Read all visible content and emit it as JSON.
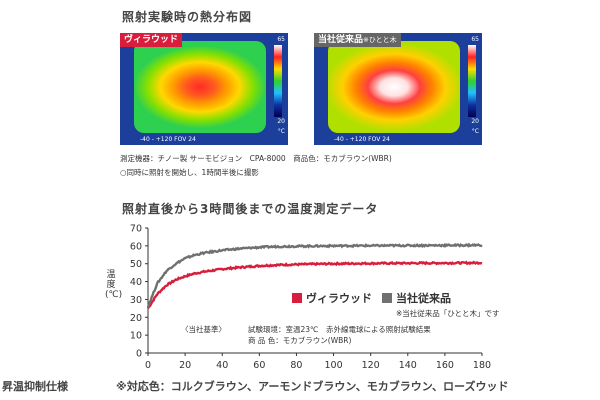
{
  "thermal": {
    "title": "照射実験時の熱分布図",
    "left": {
      "label": "ヴィラウッド",
      "label_color": "#d81e3c",
      "scale_top": "65",
      "scale_bottom": "20",
      "scale_unit": "°C",
      "fov": "-40 - +120 FOV 24"
    },
    "right": {
      "label": "当社従来品",
      "label_note": "※ひとと木",
      "label_color": "#666666",
      "scale_top": "65",
      "scale_bottom": "20",
      "scale_unit": "°C",
      "fov": "-40 - +120 FOV 24"
    },
    "caption1": "測定機器：チノー製 サーモビジョン　CPA-8000　商品色：モカブラウン(WBR)",
    "caption2": "○同時に照射を開始し、1時間半後に撮影"
  },
  "chart_data": {
    "type": "line",
    "title": "照射直後から3時間後までの温度測定データ",
    "xlabel": "",
    "ylabel": "温度(℃)",
    "xlim": [
      0,
      180
    ],
    "ylim": [
      0,
      70
    ],
    "xticks": [
      "0",
      "20",
      "40",
      "60",
      "80",
      "100",
      "120",
      "140",
      "160",
      "180"
    ],
    "yticks": [
      "0",
      "10",
      "20",
      "30",
      "40",
      "50",
      "60",
      "70"
    ],
    "grid": false,
    "legend_position": "right-middle",
    "x": [
      0,
      5,
      10,
      15,
      20,
      25,
      30,
      40,
      50,
      60,
      70,
      80,
      100,
      120,
      140,
      160,
      180
    ],
    "series": [
      {
        "name": "ヴィラウッド",
        "color": "#d81e3c",
        "values": [
          25,
          33,
          38,
          41,
          43,
          44.5,
          45.5,
          47,
          48,
          48.8,
          49.3,
          49.6,
          50,
          50.2,
          50.3,
          50.4,
          50.5
        ]
      },
      {
        "name": "当社従来品",
        "color": "#707070",
        "values": [
          26,
          39,
          46,
          50,
          53,
          54.8,
          56,
          57.5,
          58.5,
          59.2,
          59.6,
          59.8,
          60,
          60.1,
          60.2,
          60.3,
          60.4
        ]
      }
    ],
    "legend_note": "※当社従来品「ひとと木」です",
    "annotation": {
      "left": "〈当社基準〉",
      "line1": "試験環境：室温23℃　赤外線電球による照射試験結果",
      "line2": "商 品 色：モカブラウン(WBR)"
    }
  },
  "footer": {
    "spec_label": "昇温抑制仕様",
    "colors_text": "※対応色：コルクブラウン、アーモンドブラウン、モカブラウン、ローズウッド"
  }
}
